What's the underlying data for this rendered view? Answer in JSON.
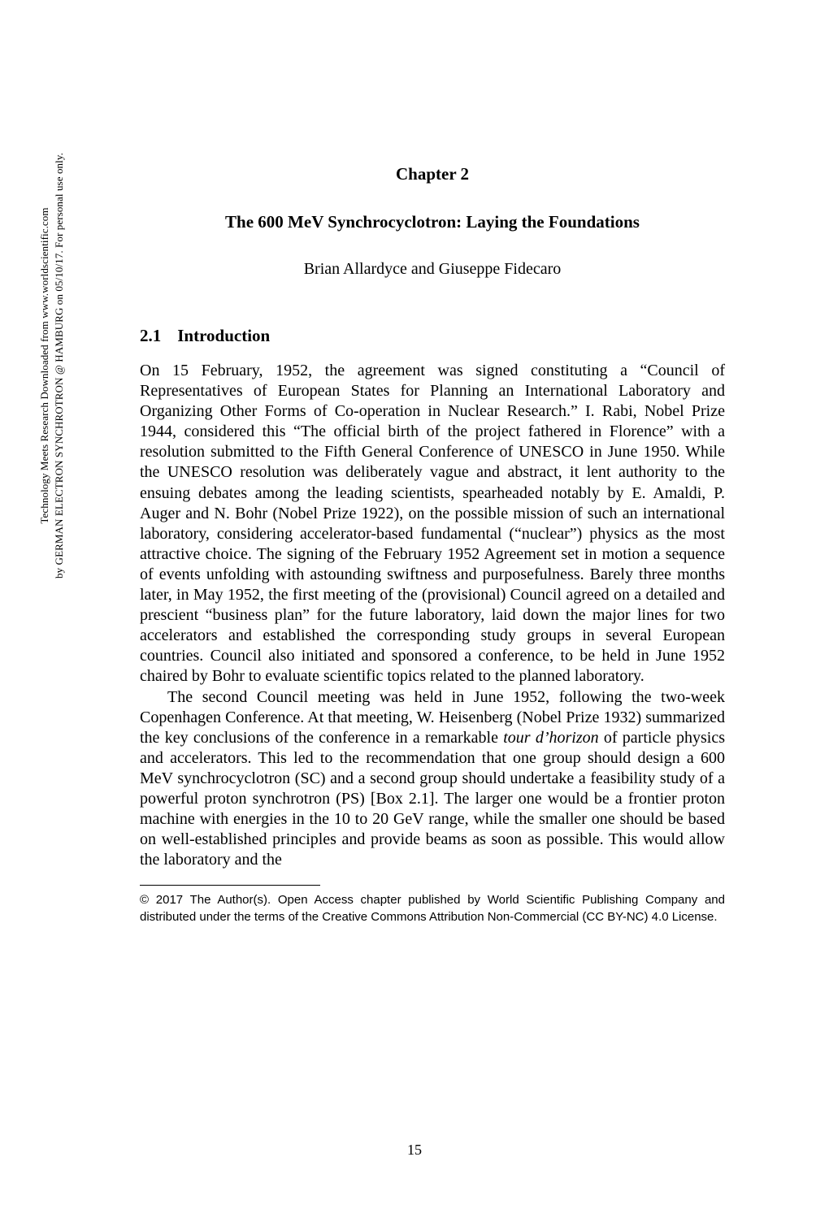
{
  "sidebar": {
    "line1": "Technology Meets Research Downloaded from www.worldscientific.com",
    "line2": "by GERMAN ELECTRON SYNCHROTRON @ HAMBURG on 05/10/17. For personal use only."
  },
  "chapter": {
    "label": "Chapter 2",
    "title": "The 600 MeV Synchrocyclotron: Laying the Foundations",
    "authors": "Brian Allardyce and Giuseppe Fidecaro"
  },
  "section": {
    "number": "2.1",
    "title": "Introduction"
  },
  "paragraphs": {
    "p1": "On 15 February, 1952, the agreement was signed constituting a “Council of Representatives of European States for Planning an International Laboratory and Organizing Other Forms of Co-operation in Nuclear Research.” I. Rabi, Nobel Prize 1944, considered this “The official birth of the project fathered in Florence” with a resolution submitted to the Fifth General Conference of UNESCO in June 1950. While the UNESCO resolution was deliberately vague and abstract, it lent authority to the ensuing debates among the leading scientists, spearheaded notably by E. Amaldi, P. Auger and N. Bohr (Nobel Prize 1922), on the possible mission of such an international laboratory, considering accelerator-based fundamental (“nuclear”) physics as the most attractive choice. The signing of the February 1952 Agreement set in motion a sequence of events unfolding with astounding swiftness and purposefulness. Barely three months later, in May 1952, the first meeting of the (provisional) Council agreed on a detailed and prescient “business plan” for the future laboratory, laid down the major lines for two accelerators and established the corresponding study groups in several European countries. Council also initiated and sponsored a conference, to be held in June 1952 chaired by Bohr to evaluate scientific topics related to the planned laboratory.",
    "p2_a": "The second Council meeting was held in June 1952, following the two-week Copenhagen Conference. At that meeting, W. Heisenberg (Nobel Prize 1932) summarized the key conclusions of the conference in a remarkable ",
    "p2_italic": "tour d’horizon",
    "p2_b": " of particle physics and accelerators. This led to the recommendation that one group should design a 600 MeV synchrocyclotron (SC) and a second group should undertake a feasibility study of a powerful proton synchrotron (PS) [Box 2.1]. The larger one would be a frontier proton machine with energies in the 10 to 20 GeV range, while the smaller one should be based on well-established principles and provide beams as soon as possible. This would allow the laboratory and the"
  },
  "footnote": {
    "text": "© 2017 The Author(s). Open Access chapter published by World Scientific Publishing Company and distributed under the terms of the Creative Commons Attribution Non-Commercial (CC BY-NC) 4.0 License."
  },
  "page_number": "15"
}
